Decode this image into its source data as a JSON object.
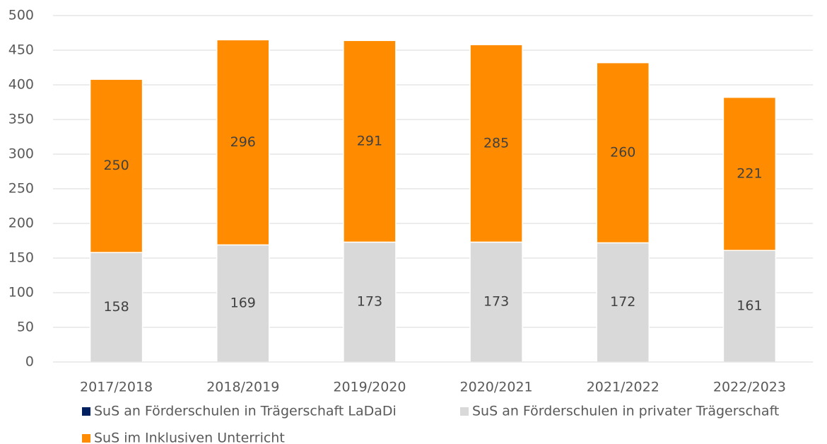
{
  "chart_data": {
    "type": "stacked_bar",
    "categories": [
      "2017/2018",
      "2018/2019",
      "2019/2020",
      "2020/2021",
      "2021/2022",
      "2022/2023"
    ],
    "series": [
      {
        "name": "SuS an Förderschulen in Trägerschaft LaDaDi",
        "color": "#002060",
        "values": [
          0,
          0,
          0,
          0,
          0,
          0
        ]
      },
      {
        "name": "SuS an Förderschulen in privater Trägerschaft",
        "color": "#d9d9d9",
        "values": [
          158,
          169,
          173,
          173,
          172,
          161
        ]
      },
      {
        "name": "SuS im Inklusiven Unterricht",
        "color": "#ff8c00",
        "values": [
          250,
          296,
          291,
          285,
          260,
          221
        ]
      }
    ],
    "ylim": [
      0,
      500
    ],
    "yticks": [
      0,
      50,
      100,
      150,
      200,
      250,
      300,
      350,
      400,
      450,
      500
    ],
    "grid": true,
    "legend": "bottom"
  }
}
